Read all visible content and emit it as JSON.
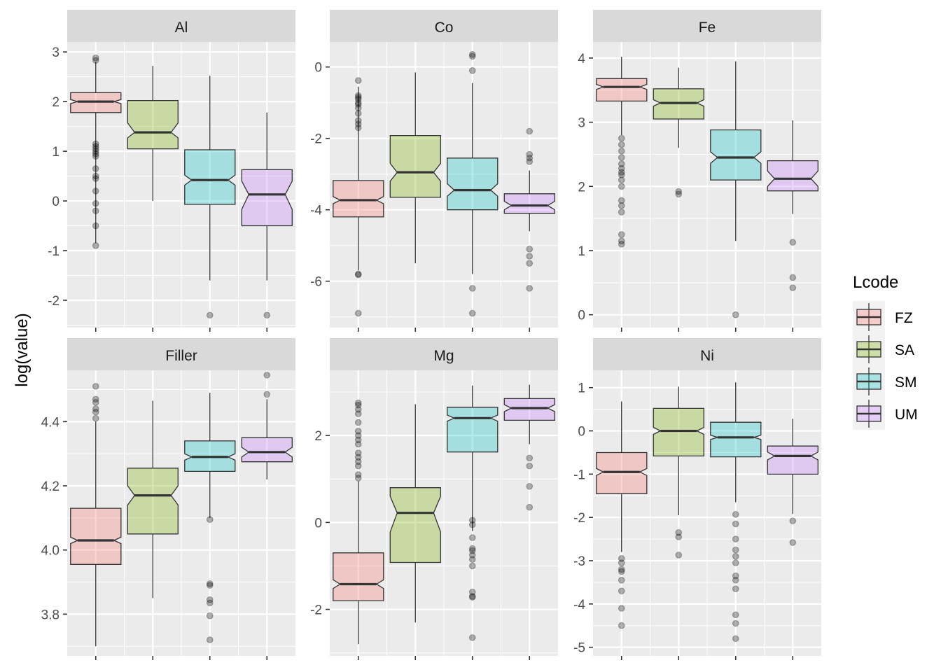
{
  "ylabel": "log(value)",
  "legend": {
    "title": "Lcode",
    "placement": "right",
    "items": [
      {
        "label": "FZ",
        "color": "#F8766D"
      },
      {
        "label": "SA",
        "color": "#7CAE00"
      },
      {
        "label": "SM",
        "color": "#00BFC4"
      },
      {
        "label": "UM",
        "color": "#C77CFF"
      }
    ]
  },
  "colors": {
    "panel_bg": "#EBEBEB",
    "strip_bg": "#D9D9D9",
    "grid": "#FFFFFF",
    "box_line": "#333333",
    "outlier": "#000000"
  },
  "chart_data": [
    {
      "type": "boxplot",
      "facet": "Al",
      "ylim": [
        -2.55,
        3.2
      ],
      "yticks": [
        3,
        2,
        1,
        0,
        -1,
        -2
      ],
      "ytick_labels": [
        "3",
        "2",
        "1",
        "0",
        "-1",
        "-2"
      ],
      "categories": [
        "FZ",
        "SA",
        "SM",
        "UM"
      ],
      "boxes": [
        {
          "group": "FZ",
          "lower_whisker": -0.85,
          "q1": 1.78,
          "median": 2.0,
          "q3": 2.18,
          "upper_whisker": 2.8,
          "notch_low": 1.96,
          "notch_high": 2.04,
          "outliers": [
            2.88,
            2.83,
            1.15,
            1.1,
            1.05,
            1.0,
            0.95,
            0.9,
            0.65,
            0.5,
            0.45,
            0.2,
            -0.05,
            -0.2,
            -0.5,
            -0.9
          ]
        },
        {
          "group": "SA",
          "lower_whisker": 0.0,
          "q1": 1.05,
          "median": 1.38,
          "q3": 2.02,
          "upper_whisker": 2.72,
          "notch_low": 1.27,
          "notch_high": 1.57,
          "outliers": []
        },
        {
          "group": "SM",
          "lower_whisker": -1.6,
          "q1": -0.07,
          "median": 0.42,
          "q3": 1.03,
          "upper_whisker": 2.52,
          "notch_low": 0.32,
          "notch_high": 0.52,
          "outliers": [
            -2.3
          ]
        },
        {
          "group": "UM",
          "lower_whisker": -1.6,
          "q1": -0.5,
          "median": 0.13,
          "q3": 0.63,
          "upper_whisker": 1.78,
          "notch_low": -0.17,
          "notch_high": 0.4,
          "outliers": [
            -2.3
          ]
        }
      ]
    },
    {
      "type": "boxplot",
      "facet": "Co",
      "ylim": [
        -7.3,
        0.7
      ],
      "yticks": [
        0,
        -2,
        -4,
        -6
      ],
      "ytick_labels": [
        "0",
        "-2",
        "-4",
        "-6"
      ],
      "categories": [
        "FZ",
        "SA",
        "SM",
        "UM"
      ],
      "boxes": [
        {
          "group": "FZ",
          "lower_whisker": -5.7,
          "q1": -4.2,
          "median": -3.73,
          "q3": -3.18,
          "upper_whisker": -0.55,
          "notch_low": -3.83,
          "notch_high": -3.63,
          "outliers": [
            -0.38,
            -0.8,
            -0.85,
            -0.9,
            -1.0,
            -1.05,
            -1.15,
            -1.3,
            -1.5,
            -1.6,
            -1.7,
            -5.8,
            -5.82,
            -6.9
          ]
        },
        {
          "group": "SA",
          "lower_whisker": -5.5,
          "q1": -3.65,
          "median": -2.95,
          "q3": -1.92,
          "upper_whisker": -0.15,
          "notch_low": -3.2,
          "notch_high": -2.7,
          "outliers": []
        },
        {
          "group": "SM",
          "lower_whisker": -5.8,
          "q1": -4.0,
          "median": -3.45,
          "q3": -2.55,
          "upper_whisker": -0.45,
          "notch_low": -3.62,
          "notch_high": -3.27,
          "outliers": [
            0.35,
            0.3,
            -0.1,
            -6.2,
            -6.9
          ]
        },
        {
          "group": "UM",
          "lower_whisker": -4.6,
          "q1": -4.1,
          "median": -3.88,
          "q3": -3.55,
          "upper_whisker": -2.9,
          "notch_low": -4.0,
          "notch_high": -3.76,
          "outliers": [
            -1.8,
            -2.45,
            -2.55,
            -2.65,
            -5.1,
            -5.3,
            -5.5,
            -6.2
          ]
        }
      ]
    },
    {
      "type": "boxplot",
      "facet": "Fe",
      "ylim": [
        -0.2,
        4.25
      ],
      "yticks": [
        4,
        3,
        2,
        1,
        0
      ],
      "ytick_labels": [
        "4",
        "3",
        "2",
        "1",
        "0"
      ],
      "categories": [
        "FZ",
        "SA",
        "SM",
        "UM"
      ],
      "boxes": [
        {
          "group": "FZ",
          "lower_whisker": 2.8,
          "q1": 3.33,
          "median": 3.55,
          "q3": 3.68,
          "upper_whisker": 4.02,
          "notch_low": 3.51,
          "notch_high": 3.59,
          "outliers": [
            2.75,
            2.65,
            2.55,
            2.45,
            2.35,
            2.28,
            2.22,
            2.18,
            2.1,
            2.0,
            1.78,
            1.7,
            1.6,
            1.25,
            1.15,
            1.1
          ]
        },
        {
          "group": "SA",
          "lower_whisker": 2.6,
          "q1": 3.05,
          "median": 3.3,
          "q3": 3.52,
          "upper_whisker": 3.85,
          "notch_low": 3.25,
          "notch_high": 3.35,
          "outliers": [
            1.92,
            1.88
          ]
        },
        {
          "group": "SM",
          "lower_whisker": 1.15,
          "q1": 2.1,
          "median": 2.45,
          "q3": 2.88,
          "upper_whisker": 3.95,
          "notch_low": 2.36,
          "notch_high": 2.54,
          "outliers": [
            0.0
          ]
        },
        {
          "group": "UM",
          "lower_whisker": 1.57,
          "q1": 1.93,
          "median": 2.12,
          "q3": 2.4,
          "upper_whisker": 3.03,
          "notch_low": 2.0,
          "notch_high": 2.24,
          "outliers": [
            1.13,
            0.58,
            0.42
          ]
        }
      ]
    },
    {
      "type": "boxplot",
      "facet": "Filler",
      "ylim": [
        3.67,
        4.56
      ],
      "yticks": [
        4.4,
        4.2,
        4.0,
        3.8
      ],
      "ytick_labels": [
        "4.4",
        "4.2",
        "4.0",
        "3.8"
      ],
      "categories": [
        "FZ",
        "SA",
        "SM",
        "UM"
      ],
      "boxes": [
        {
          "group": "FZ",
          "lower_whisker": 3.7,
          "q1": 3.955,
          "median": 4.03,
          "q3": 4.13,
          "upper_whisker": 4.4,
          "notch_low": 4.02,
          "notch_high": 4.04,
          "outliers": [
            4.51,
            4.47,
            4.46,
            4.44,
            4.43,
            4.41
          ]
        },
        {
          "group": "SA",
          "lower_whisker": 3.85,
          "q1": 4.05,
          "median": 4.17,
          "q3": 4.255,
          "upper_whisker": 4.465,
          "notch_low": 4.14,
          "notch_high": 4.2,
          "outliers": []
        },
        {
          "group": "SM",
          "lower_whisker": 4.1,
          "q1": 4.245,
          "median": 4.29,
          "q3": 4.34,
          "upper_whisker": 4.49,
          "notch_low": 4.28,
          "notch_high": 4.3,
          "outliers": [
            4.095,
            3.895,
            3.89,
            3.845,
            3.835,
            3.795,
            3.72
          ]
        },
        {
          "group": "UM",
          "lower_whisker": 4.22,
          "q1": 4.275,
          "median": 4.305,
          "q3": 4.35,
          "upper_whisker": 4.47,
          "notch_low": 4.29,
          "notch_high": 4.32,
          "outliers": [
            4.545,
            4.485
          ]
        }
      ]
    },
    {
      "type": "boxplot",
      "facet": "Mg",
      "ylim": [
        -3.07,
        3.5
      ],
      "yticks": [
        2,
        0,
        -2
      ],
      "ytick_labels": [
        "2",
        "0",
        "-2"
      ],
      "categories": [
        "FZ",
        "SA",
        "SM",
        "UM"
      ],
      "boxes": [
        {
          "group": "FZ",
          "lower_whisker": -2.8,
          "q1": -1.8,
          "median": -1.42,
          "q3": -0.7,
          "upper_whisker": 0.95,
          "notch_low": -1.52,
          "notch_high": -1.32,
          "outliers": [
            2.75,
            2.7,
            2.6,
            2.5,
            2.3,
            2.1,
            2.0,
            1.9,
            1.8,
            1.6,
            1.5,
            1.4,
            1.3,
            1.1,
            1.02
          ]
        },
        {
          "group": "SA",
          "lower_whisker": -2.3,
          "q1": -0.92,
          "median": 0.22,
          "q3": 0.8,
          "upper_whisker": 2.72,
          "notch_low": -0.22,
          "notch_high": 0.6,
          "outliers": []
        },
        {
          "group": "SM",
          "lower_whisker": -0.2,
          "q1": 1.62,
          "median": 2.4,
          "q3": 2.65,
          "upper_whisker": 3.15,
          "notch_low": 2.33,
          "notch_high": 2.47,
          "outliers": [
            0.05,
            -0.05,
            -0.35,
            -0.6,
            -0.65,
            -0.75,
            -0.85,
            -1.0,
            -1.6,
            -1.7,
            -1.72,
            -2.65
          ]
        },
        {
          "group": "UM",
          "lower_whisker": 1.8,
          "q1": 2.35,
          "median": 2.63,
          "q3": 2.85,
          "upper_whisker": 3.17,
          "notch_low": 2.55,
          "notch_high": 2.71,
          "outliers": [
            1.48,
            1.3,
            0.83,
            0.35
          ]
        }
      ]
    },
    {
      "type": "boxplot",
      "facet": "Ni",
      "ylim": [
        -5.2,
        1.4
      ],
      "yticks": [
        1,
        0,
        -1,
        -2,
        -3,
        -4,
        -5
      ],
      "ytick_labels": [
        "1",
        "0",
        "-1",
        "-2",
        "-3",
        "-4",
        "-5"
      ],
      "categories": [
        "FZ",
        "SA",
        "SM",
        "UM"
      ],
      "boxes": [
        {
          "group": "FZ",
          "lower_whisker": -2.8,
          "q1": -1.45,
          "median": -0.95,
          "q3": -0.5,
          "upper_whisker": 0.68,
          "notch_low": -1.03,
          "notch_high": -0.87,
          "outliers": [
            -2.95,
            -3.05,
            -3.2,
            -3.25,
            -3.45,
            -3.7,
            -4.1,
            -4.5
          ]
        },
        {
          "group": "SA",
          "lower_whisker": -1.95,
          "q1": -0.58,
          "median": 0.0,
          "q3": 0.52,
          "upper_whisker": 1.02,
          "notch_low": -0.08,
          "notch_high": 0.08,
          "outliers": [
            -2.35,
            -2.45,
            -2.87
          ]
        },
        {
          "group": "SM",
          "lower_whisker": -1.65,
          "q1": -0.6,
          "median": -0.15,
          "q3": 0.2,
          "upper_whisker": 1.12,
          "notch_low": -0.2,
          "notch_high": -0.1,
          "outliers": [
            -1.93,
            -2.15,
            -2.5,
            -2.75,
            -2.9,
            -3.05,
            -3.35,
            -3.45,
            -3.65,
            -4.25,
            -4.45,
            -4.8
          ]
        },
        {
          "group": "UM",
          "lower_whisker": -1.92,
          "q1": -1.0,
          "median": -0.58,
          "q3": -0.35,
          "upper_whisker": 0.28,
          "notch_low": -0.67,
          "notch_high": -0.49,
          "outliers": [
            -2.08,
            -2.58
          ]
        }
      ]
    }
  ]
}
